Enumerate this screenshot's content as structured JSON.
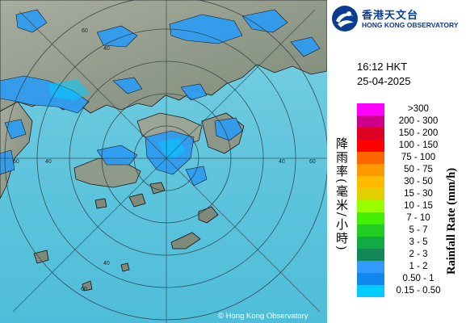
{
  "logo": {
    "name_zh": "香港天文台",
    "name_en": "HONG KONG OBSERVATORY"
  },
  "timestamp": {
    "time": "16:12 HKT",
    "date": "25-04-2025"
  },
  "legend": {
    "title_zh": "降雨率(毫米/小時)",
    "title_en": "Rainfall Rate (mm/h)",
    "ranges": [
      {
        "label": ">300",
        "color": "#ff00ff"
      },
      {
        "label": "200 - 300",
        "color": "#cc0088"
      },
      {
        "label": "150 - 200",
        "color": "#dd0022"
      },
      {
        "label": "100 - 150",
        "color": "#ff0000"
      },
      {
        "label": "75 - 100",
        "color": "#ff6600"
      },
      {
        "label": "50 - 75",
        "color": "#ff9900"
      },
      {
        "label": "30 - 50",
        "color": "#ffbb00"
      },
      {
        "label": "15 - 30",
        "color": "#e0d000"
      },
      {
        "label": "10 - 15",
        "color": "#99ff00"
      },
      {
        "label": "7 - 10",
        "color": "#44ee00"
      },
      {
        "label": "5 - 7",
        "color": "#22cc22"
      },
      {
        "label": "3 - 5",
        "color": "#11aa44"
      },
      {
        "label": "2 - 3",
        "color": "#118855"
      },
      {
        "label": "1 - 2",
        "color": "#3399ff"
      },
      {
        "label": "0.50 - 1",
        "color": "#1188ee"
      },
      {
        "label": "0.15 - 0.50",
        "color": "#00ccff"
      }
    ]
  },
  "range_rings": {
    "labels": [
      "60",
      "40",
      "60",
      "40",
      "60",
      "40",
      "60",
      "40"
    ]
  },
  "map_colors": {
    "sea": "#5cc4dc",
    "land": "#8a9487",
    "rain": "#2f9cf0",
    "coastline": "#101010"
  },
  "copyright": "© Hong Kong Observatory"
}
